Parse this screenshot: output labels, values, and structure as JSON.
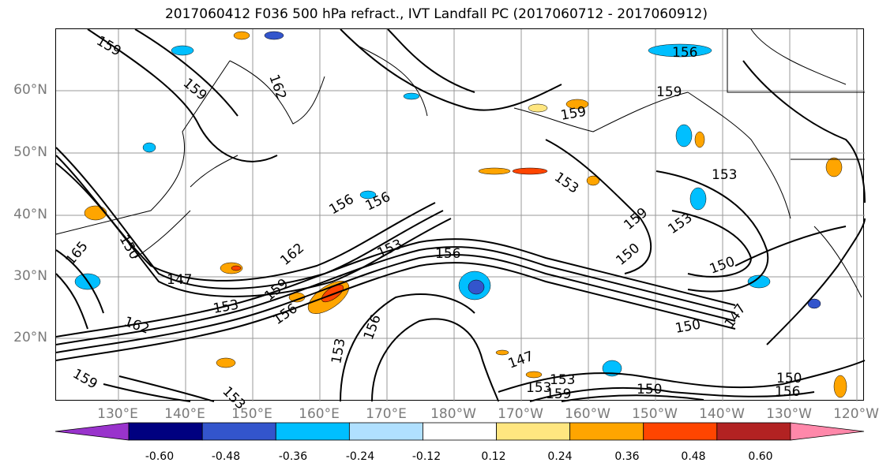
{
  "title": "2017060412 F036 500 hPa refract., IVT Landfall PC (2017060712 - 2017060912)",
  "latitude_labels": [
    "60°N",
    "50°N",
    "40°N",
    "30°N",
    "20°N"
  ],
  "longitude_labels": [
    "130°E",
    "140°E",
    "150°E",
    "160°E",
    "170°E",
    "180°W",
    "170°W",
    "160°W",
    "150°W",
    "140°W",
    "130°W",
    "120°W"
  ],
  "contour_labels": [
    "159",
    "159",
    "162",
    "159",
    "156",
    "159",
    "153",
    "156",
    "159",
    "153",
    "156",
    "153",
    "153",
    "162",
    "147",
    "150",
    "165",
    "162",
    "159",
    "153",
    "156",
    "156",
    "153",
    "159",
    "153",
    "150",
    "150",
    "150",
    "147",
    "153",
    "156",
    "147",
    "153",
    "150",
    "150",
    "156",
    "159"
  ],
  "colorbar": {
    "tick_labels": [
      "-0.60",
      "-0.48",
      "-0.36",
      "-0.24",
      "-0.12",
      "0.12",
      "0.24",
      "0.36",
      "0.48",
      "0.60"
    ],
    "colors": [
      "#9933cc",
      "#000080",
      "#3355cc",
      "#00bfff",
      "#b0e0ff",
      "#ffffff",
      "#ffe680",
      "#ffa500",
      "#ff4500",
      "#b22222",
      "#ff88aa"
    ],
    "extend": "both"
  },
  "shading_colors": {
    "light_blue": "#b0e0ff",
    "cyan": "#00bfff",
    "blue": "#3355cc",
    "yellow": "#ffe680",
    "orange": "#ffa500",
    "red_orange": "#ff4500"
  }
}
